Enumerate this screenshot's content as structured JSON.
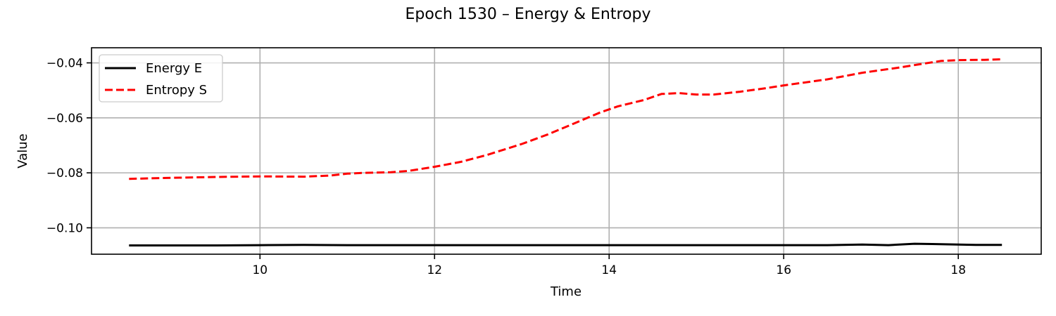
{
  "chart_data": {
    "type": "line",
    "title": "Epoch 1530 – Energy & Entropy",
    "xlabel": "Time",
    "ylabel": "Value",
    "xlim": [
      8.07,
      18.95
    ],
    "ylim": [
      -0.1096,
      -0.0345
    ],
    "xticks": [
      10,
      12,
      14,
      16,
      18
    ],
    "xtick_labels": [
      "10",
      "12",
      "14",
      "16",
      "18"
    ],
    "yticks": [
      -0.1,
      -0.08,
      -0.06,
      -0.04
    ],
    "ytick_labels": [
      "−0.10",
      "−0.08",
      "−0.06",
      "−0.04"
    ],
    "grid": true,
    "legend_position": "top-left",
    "series": [
      {
        "name": "Energy E",
        "color": "#000000",
        "dash": "solid",
        "x": [
          8.5,
          9.0,
          9.5,
          10.0,
          10.5,
          11.0,
          11.5,
          12.0,
          12.5,
          13.0,
          13.5,
          14.0,
          14.5,
          15.0,
          15.5,
          16.0,
          16.5,
          16.9,
          17.2,
          17.5,
          17.7,
          18.0,
          18.2,
          18.5
        ],
        "y": [
          -0.1064,
          -0.1064,
          -0.1064,
          -0.1063,
          -0.1062,
          -0.1063,
          -0.1063,
          -0.1063,
          -0.1063,
          -0.1063,
          -0.1063,
          -0.1063,
          -0.1063,
          -0.1063,
          -0.1063,
          -0.1063,
          -0.1063,
          -0.1061,
          -0.1063,
          -0.1058,
          -0.1059,
          -0.1061,
          -0.1062,
          -0.1062
        ]
      },
      {
        "name": "Entropy S",
        "color": "#ff0000",
        "dash": "dashed",
        "x": [
          8.5,
          9.0,
          9.5,
          10.0,
          10.5,
          10.8,
          11.0,
          11.2,
          11.5,
          11.7,
          12.0,
          12.3,
          12.6,
          13.0,
          13.3,
          13.6,
          13.9,
          14.1,
          14.4,
          14.6,
          14.8,
          15.0,
          15.2,
          15.5,
          15.8,
          16.0,
          16.5,
          16.9,
          17.3,
          17.6,
          17.8,
          18.0,
          18.3,
          18.5
        ],
        "y": [
          -0.0822,
          -0.0818,
          -0.0815,
          -0.0813,
          -0.0814,
          -0.081,
          -0.0803,
          -0.08,
          -0.0798,
          -0.0793,
          -0.0778,
          -0.076,
          -0.0735,
          -0.0695,
          -0.066,
          -0.062,
          -0.058,
          -0.0558,
          -0.0535,
          -0.0513,
          -0.051,
          -0.0515,
          -0.0515,
          -0.0505,
          -0.0492,
          -0.0482,
          -0.046,
          -0.0436,
          -0.0418,
          -0.0403,
          -0.0393,
          -0.039,
          -0.0389,
          -0.0387
        ]
      }
    ]
  }
}
